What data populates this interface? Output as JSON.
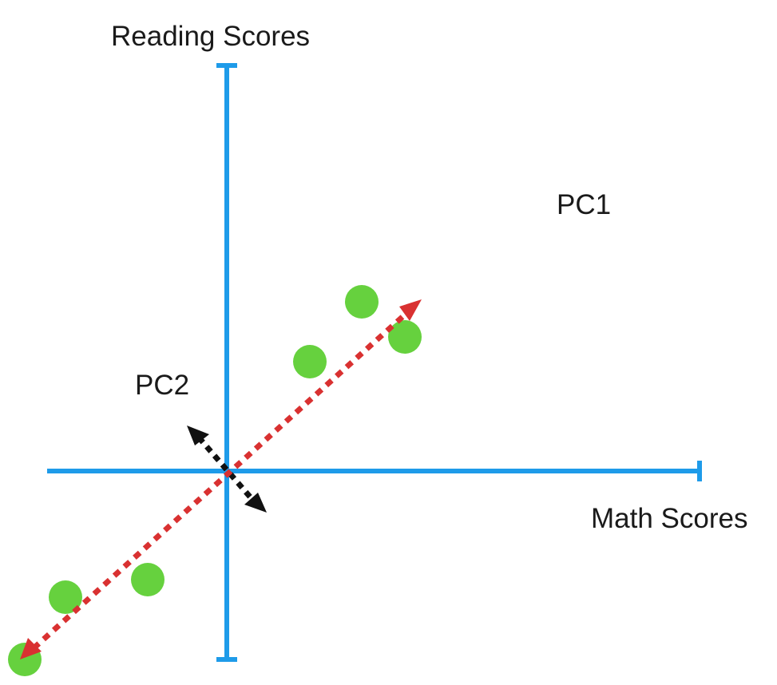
{
  "labels": {
    "y_axis": "Reading Scores",
    "x_axis": "Math Scores",
    "pc1": "PC1",
    "pc2": "PC2"
  },
  "colors": {
    "axis": "#1e9be9",
    "point": "#66d13e",
    "pc1": "#d93131",
    "pc2": "#111111",
    "text": "#1a1a1a"
  }
}
